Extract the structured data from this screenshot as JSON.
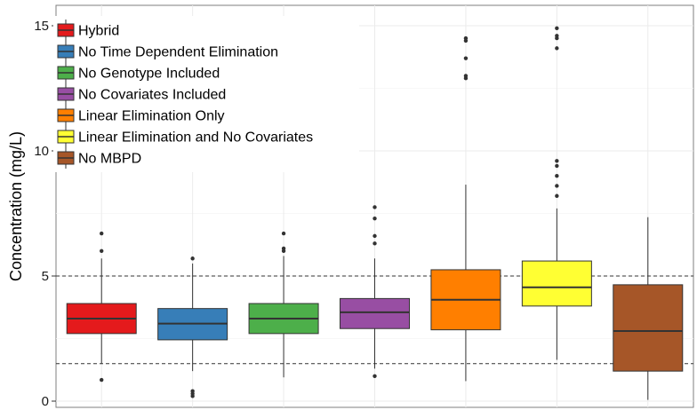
{
  "chart_data": {
    "type": "box",
    "title": "",
    "xlabel": "",
    "ylabel": "Concentration (mg/L)",
    "ylim": [
      -0.3,
      15.8
    ],
    "yticks": [
      0,
      5,
      10,
      15
    ],
    "grid": true,
    "legend_position": "top-left",
    "reference_lines": [
      5,
      1.5
    ],
    "series": [
      {
        "name": "Hybrid",
        "color": "#e41a1c",
        "q1": 2.7,
        "median": 3.3,
        "q3": 3.9,
        "whisker_low": 1.5,
        "whisker_high": 5.7,
        "outliers": [
          0.85,
          6.0,
          6.7
        ]
      },
      {
        "name": "No Time Dependent Elimination",
        "color": "#377eb8",
        "q1": 2.45,
        "median": 3.1,
        "q3": 3.7,
        "whisker_low": 1.2,
        "whisker_high": 5.5,
        "outliers": [
          0.2,
          0.3,
          0.4,
          5.7
        ]
      },
      {
        "name": "No Genotype Included",
        "color": "#4daf4a",
        "q1": 2.7,
        "median": 3.3,
        "q3": 3.9,
        "whisker_low": 0.95,
        "whisker_high": 5.8,
        "outliers": [
          6.0,
          6.1,
          6.7
        ]
      },
      {
        "name": "No Covariates Included",
        "color": "#984ea3",
        "q1": 2.9,
        "median": 3.55,
        "q3": 4.1,
        "whisker_low": 1.3,
        "whisker_high": 5.7,
        "outliers": [
          1.0,
          6.3,
          6.6,
          7.3,
          7.75
        ]
      },
      {
        "name": "Linear Elimination Only",
        "color": "#ff7f00",
        "q1": 2.85,
        "median": 4.05,
        "q3": 5.25,
        "whisker_low": 0.8,
        "whisker_high": 8.65,
        "outliers": [
          12.9,
          13.0,
          13.7,
          14.4,
          14.5
        ]
      },
      {
        "name": "Linear Elimination and No Covariates",
        "color": "#ffff33",
        "q1": 3.8,
        "median": 4.55,
        "q3": 5.6,
        "whisker_low": 1.65,
        "whisker_high": 7.7,
        "outliers": [
          8.2,
          8.6,
          9.0,
          9.4,
          9.6,
          14.1,
          14.5,
          14.6,
          14.9
        ]
      },
      {
        "name": "No MBPD",
        "color": "#a65628",
        "q1": 1.2,
        "median": 2.8,
        "q3": 4.65,
        "whisker_low": 0.05,
        "whisker_high": 7.35,
        "outliers": []
      }
    ]
  }
}
